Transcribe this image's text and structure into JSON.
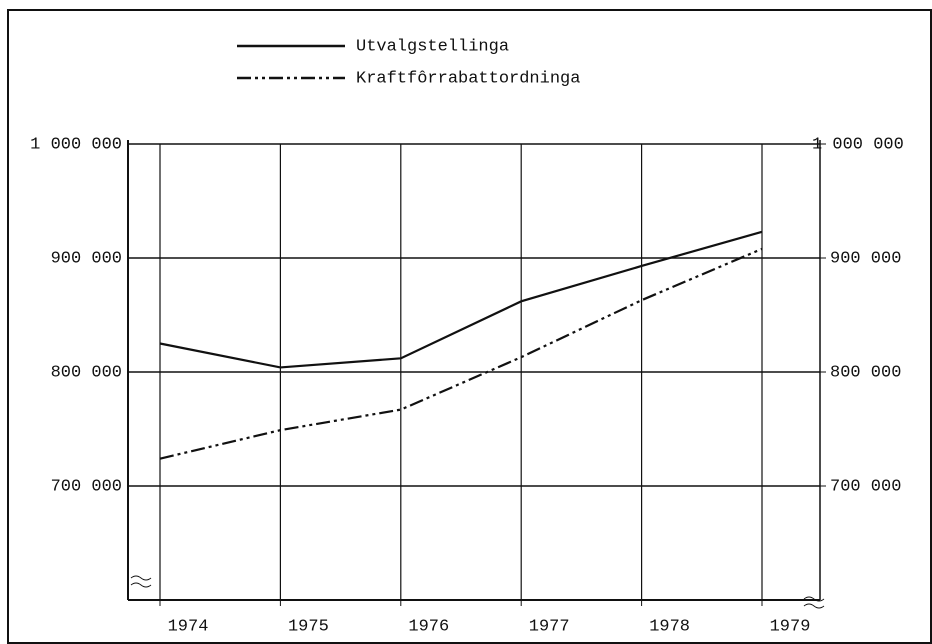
{
  "chart_data": {
    "type": "line",
    "categories": [
      "1974",
      "1975",
      "1976",
      "1977",
      "1978",
      "1979"
    ],
    "series": [
      {
        "name": "Utvalgstellinga",
        "color": "#111111",
        "dash": "solid",
        "values": [
          825000,
          804000,
          812000,
          862000,
          893000,
          923000
        ]
      },
      {
        "name": "Kraftfôrrabattordninga",
        "color": "#111111",
        "dash": "dashdotdot",
        "values": [
          724000,
          749000,
          767000,
          813000,
          863000,
          908000
        ]
      }
    ],
    "ylim": [
      600000,
      1000000
    ],
    "yticks": [
      {
        "value": 700000,
        "label": "700 000"
      },
      {
        "value": 800000,
        "label": "800 000"
      },
      {
        "value": 900000,
        "label": "900 000"
      },
      {
        "value": 1000000,
        "label": "1 000 000"
      }
    ],
    "y2lim": [
      600000,
      1000000
    ],
    "y2ticks": [
      {
        "value": 700000,
        "label": "700 000"
      },
      {
        "value": 800000,
        "label": "800 000"
      },
      {
        "value": 900000,
        "label": "900 000"
      },
      {
        "value": 1000000,
        "label": "1 000 000"
      }
    ],
    "grid": true
  }
}
